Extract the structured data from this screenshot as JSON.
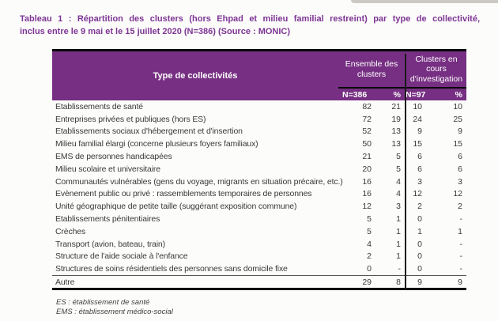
{
  "title": {
    "line1": "Tableau 1 : Répartition des clusters (hors Ehpad et milieu familial restreint) par type de collectivité,",
    "line2": "inclus entre le 9 mai et le 15 juillet 2020 (N=386) (Source : MONIC)"
  },
  "table": {
    "header": {
      "type_label": "Type de collectivités",
      "group1": "Ensemble des clusters",
      "group2": "Clusters en cours d'investigation",
      "sub_n1": "N=386",
      "sub_p1": "%",
      "sub_n2": "N=97",
      "sub_p2": "%"
    },
    "rows": [
      {
        "label": "Etablissements de santé",
        "n1": "82",
        "p1": "21",
        "n2": "10",
        "p2": "10"
      },
      {
        "label": "Entreprises privées et publiques (hors ES)",
        "n1": "72",
        "p1": "19",
        "n2": "24",
        "p2": "25"
      },
      {
        "label": "Etablissements sociaux d'hébergement et d'insertion",
        "n1": "52",
        "p1": "13",
        "n2": "9",
        "p2": "9"
      },
      {
        "label": "Milieu familial élargi (concerne plusieurs foyers familiaux)",
        "n1": "50",
        "p1": "13",
        "n2": "15",
        "p2": "15"
      },
      {
        "label": "EMS de personnes handicapées",
        "n1": "21",
        "p1": "5",
        "n2": "6",
        "p2": "6"
      },
      {
        "label": "Milieu scolaire et universitaire",
        "n1": "20",
        "p1": "5",
        "n2": "6",
        "p2": "6"
      },
      {
        "label": "Communautés vulnérables (gens du voyage, migrants en situation précaire, etc.)",
        "n1": "16",
        "p1": "4",
        "n2": "3",
        "p2": "3"
      },
      {
        "label": "Evènement public ou privé : rassemblements temporaires de personnes",
        "n1": "16",
        "p1": "4",
        "n2": "12",
        "p2": "12"
      },
      {
        "label": "Unité géographique de petite taille (suggérant exposition commune)",
        "n1": "12",
        "p1": "3",
        "n2": "2",
        "p2": "2"
      },
      {
        "label": "Etablissements pénitentiaires",
        "n1": "5",
        "p1": "1",
        "n2": "0",
        "p2": "-"
      },
      {
        "label": "Crèches",
        "n1": "5",
        "p1": "1",
        "n2": "1",
        "p2": "1"
      },
      {
        "label": "Transport (avion, bateau, train)",
        "n1": "4",
        "p1": "1",
        "n2": "0",
        "p2": "-"
      },
      {
        "label": "Structure de l'aide sociale à l'enfance",
        "n1": "2",
        "p1": "1",
        "n2": "0",
        "p2": "-"
      },
      {
        "label": "Structures de soins résidentiels des personnes sans domicile fixe",
        "n1": "0",
        "p1": "-",
        "n2": "0",
        "p2": "-"
      },
      {
        "label": "Autre",
        "n1": "29",
        "p1": "8",
        "n2": "9",
        "p2": "9",
        "separator_above": true
      }
    ]
  },
  "footnotes": [
    "ES : établissement de santé",
    "EMS : établissement médico-social"
  ],
  "colors": {
    "header_purple": "#762f82",
    "title_purple": "#7e3594",
    "body_text": "#3a3a3a",
    "border_black": "#0a0a0a"
  }
}
